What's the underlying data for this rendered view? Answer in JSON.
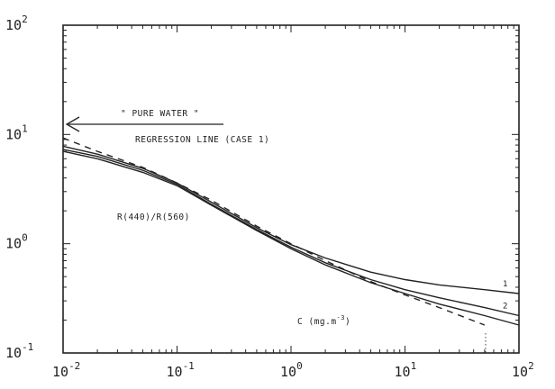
{
  "chart_data": {
    "type": "line",
    "title": "",
    "x_scale": "log",
    "y_scale": "log",
    "xlim": [
      0.01,
      100
    ],
    "ylim": [
      0.1,
      100
    ],
    "grid": false,
    "x_tick_labels": [
      {
        "value": 0.01,
        "base": "10",
        "exp": "-2"
      },
      {
        "value": 0.1,
        "base": "10",
        "exp": "-1"
      },
      {
        "value": 1,
        "base": "10",
        "exp": "0"
      },
      {
        "value": 10,
        "base": "10",
        "exp": "1"
      },
      {
        "value": 100,
        "base": "10",
        "exp": "2"
      }
    ],
    "y_tick_labels": [
      {
        "value": 0.1,
        "base": "10",
        "exp": "-1"
      },
      {
        "value": 1,
        "base": "10",
        "exp": "0"
      },
      {
        "value": 10,
        "base": "10",
        "exp": "1"
      },
      {
        "value": 100,
        "base": "10",
        "exp": "2"
      }
    ],
    "annotations": {
      "pure_water": "\" PURE WATER \"",
      "regression": "REGRESSION LINE (CASE 1)",
      "ratio": "R(440)/R(560)",
      "xlabel_main": "C (mg.m",
      "xlabel_exp": "-3",
      "xlabel_close": ")"
    },
    "pure_water_value": 11.2,
    "series": [
      {
        "name": "1",
        "style": "solid",
        "x": [
          0.01,
          0.02,
          0.05,
          0.1,
          0.2,
          0.5,
          1,
          2,
          5,
          10,
          20,
          50,
          100
        ],
        "y": [
          7.8,
          6.6,
          4.9,
          3.6,
          2.4,
          1.4,
          0.98,
          0.74,
          0.55,
          0.47,
          0.42,
          0.38,
          0.35
        ]
      },
      {
        "name": "2",
        "style": "solid",
        "x": [
          0.01,
          0.02,
          0.05,
          0.1,
          0.2,
          0.5,
          1,
          2,
          5,
          10,
          20,
          50,
          100
        ],
        "y": [
          7.3,
          6.3,
          4.7,
          3.5,
          2.3,
          1.35,
          0.93,
          0.67,
          0.47,
          0.38,
          0.32,
          0.26,
          0.22
        ]
      },
      {
        "name": "",
        "style": "solid",
        "x": [
          0.01,
          0.02,
          0.05,
          0.1,
          0.2,
          0.5,
          1,
          2,
          5,
          10,
          20,
          50,
          100
        ],
        "y": [
          7.0,
          6.0,
          4.5,
          3.4,
          2.25,
          1.32,
          0.9,
          0.64,
          0.44,
          0.35,
          0.28,
          0.22,
          0.18
        ]
      },
      {
        "name": "",
        "style": "dashed",
        "x": [
          0.01,
          0.02,
          0.05,
          0.1,
          0.2,
          0.5,
          1,
          2,
          5,
          10,
          20,
          50
        ],
        "y": [
          9.3,
          7.0,
          5.0,
          3.6,
          2.5,
          1.45,
          1.0,
          0.7,
          0.45,
          0.34,
          0.26,
          0.18
        ]
      }
    ]
  }
}
